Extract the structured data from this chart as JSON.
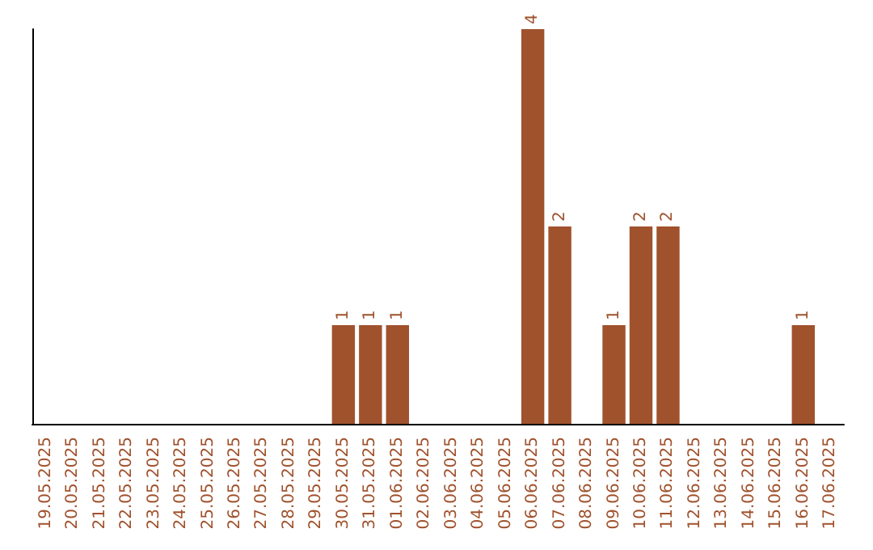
{
  "chart_data": {
    "type": "bar",
    "categories": [
      "19.05.2025",
      "20.05.2025",
      "21.05.2025",
      "22.05.2025",
      "23.05.2025",
      "24.05.2025",
      "25.05.2025",
      "26.05.2025",
      "27.05.2025",
      "28.05.2025",
      "29.05.2025",
      "30.05.2025",
      "31.05.2025",
      "01.06.2025",
      "02.06.2025",
      "03.06.2025",
      "04.06.2025",
      "05.06.2025",
      "06.06.2025",
      "07.06.2025",
      "08.06.2025",
      "09.06.2025",
      "10.06.2025",
      "11.06.2025",
      "12.06.2025",
      "13.06.2025",
      "14.06.2025",
      "15.06.2025",
      "16.06.2025",
      "17.06.2025"
    ],
    "values": [
      0,
      0,
      0,
      0,
      0,
      0,
      0,
      0,
      0,
      0,
      0,
      1,
      1,
      1,
      0,
      0,
      0,
      0,
      4,
      2,
      0,
      1,
      2,
      2,
      0,
      0,
      0,
      0,
      1,
      0
    ],
    "value_labels": [
      null,
      null,
      null,
      null,
      null,
      null,
      null,
      null,
      null,
      null,
      null,
      "1",
      "1",
      "1",
      null,
      null,
      null,
      null,
      "4",
      "2",
      null,
      "1",
      "2",
      "2",
      null,
      null,
      null,
      null,
      "1",
      null
    ],
    "color": "#a0522d",
    "grid": false,
    "ylim": [
      0,
      4
    ]
  }
}
